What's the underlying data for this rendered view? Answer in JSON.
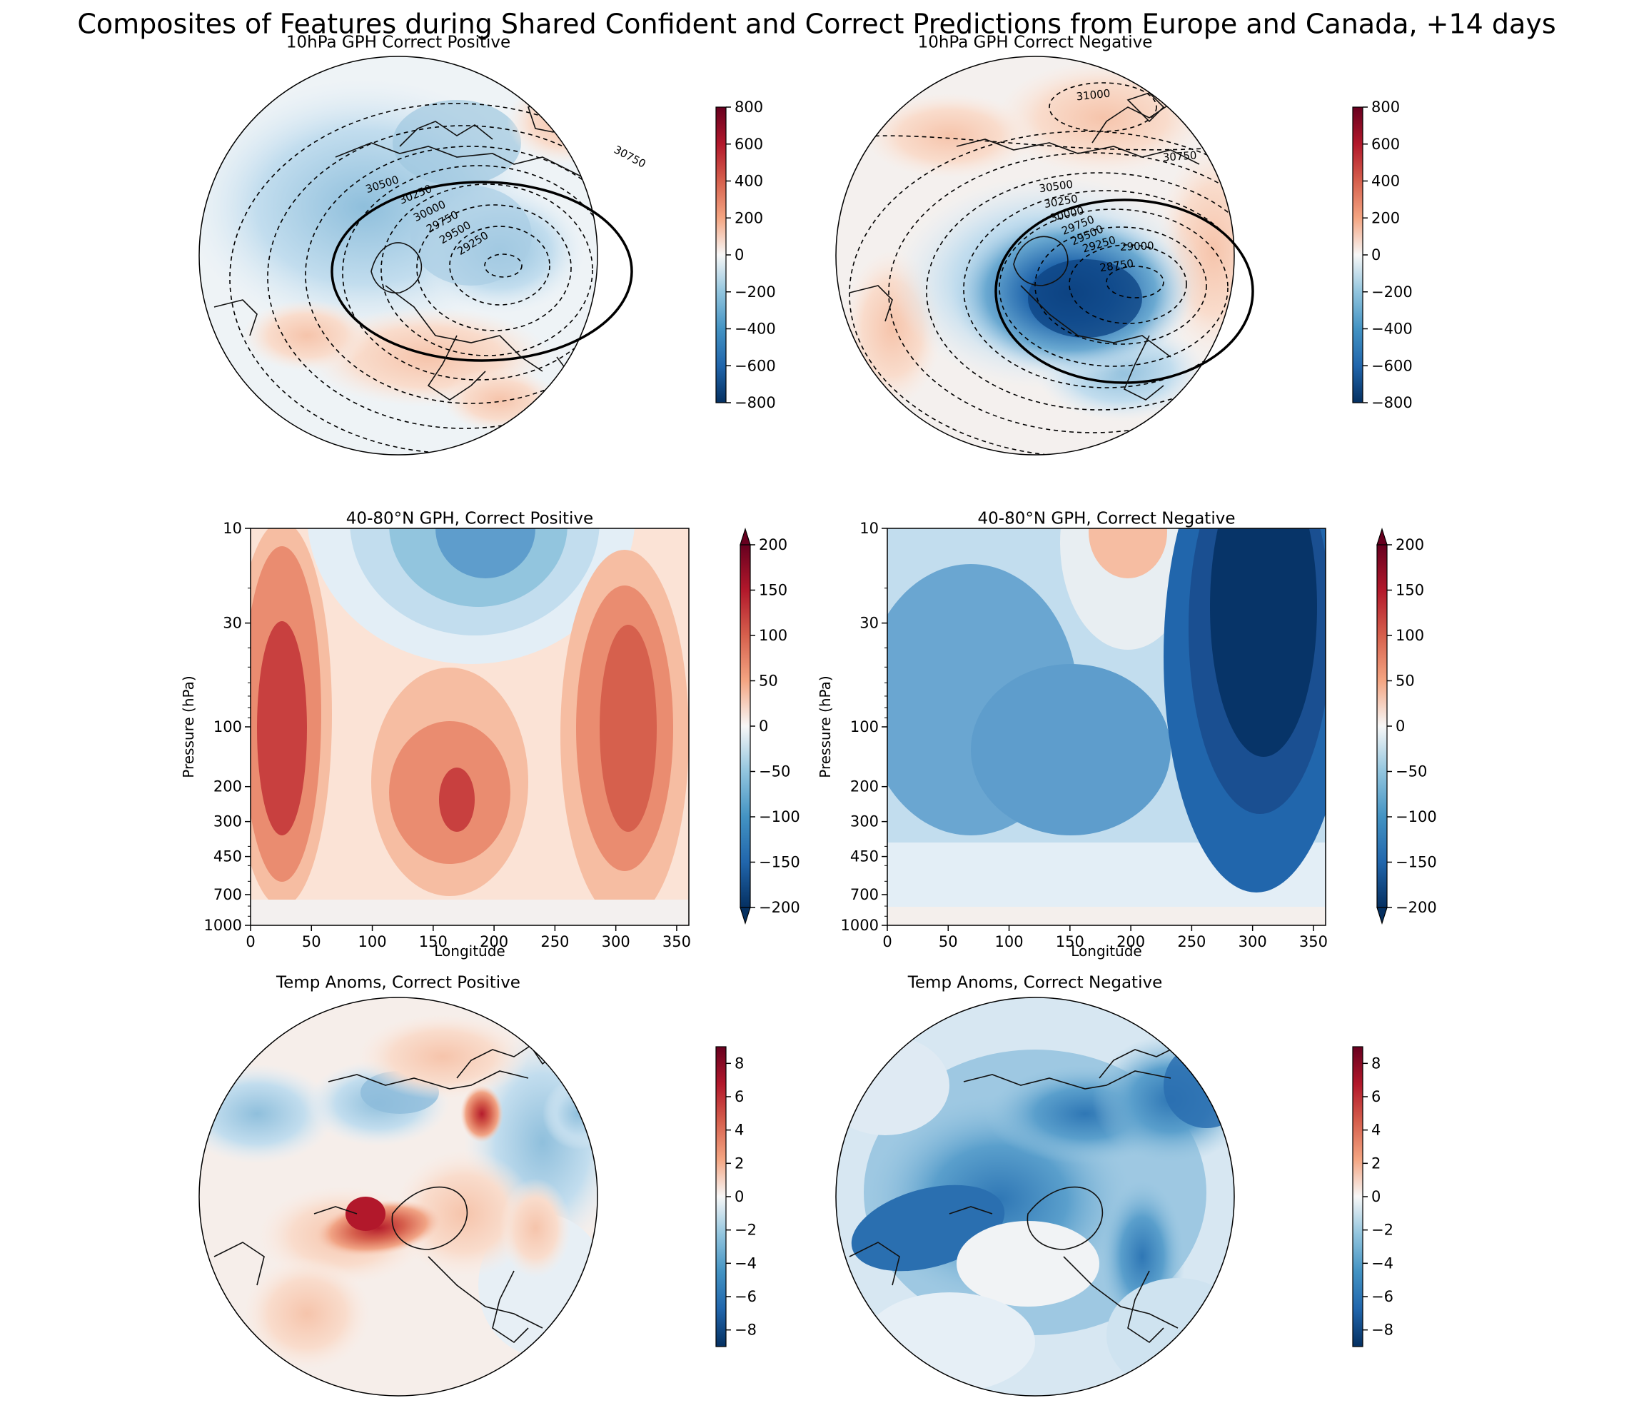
{
  "figure": {
    "suptitle": "Composites of Features during Shared Confident and Correct Predictions from Europe and Canada, +14 days"
  },
  "chart_data": [
    {
      "id": "gph10-pos",
      "type": "heatmap",
      "projection": "north-polar-stereographic",
      "title": "10hPa GPH Correct Positive",
      "colormap": "RdBu_r",
      "colorbar": {
        "ticks": [
          800,
          600,
          400,
          200,
          0,
          -200,
          -400,
          -600,
          -800
        ],
        "tick_labels": [
          "800",
          "600",
          "400",
          "200",
          "0",
          "−200",
          "−400",
          "−600",
          "−800"
        ],
        "range": [
          -800,
          800
        ]
      },
      "contour_labels": [
        "30750",
        "30500",
        "30250",
        "30000",
        "29750",
        "29500",
        "29250"
      ],
      "bold_contour": "polar vortex edge",
      "anomaly_range_estimate": [
        -300,
        200
      ]
    },
    {
      "id": "gph10-neg",
      "type": "heatmap",
      "projection": "north-polar-stereographic",
      "title": "10hPa GPH Correct Negative",
      "colormap": "RdBu_r",
      "colorbar": {
        "ticks": [
          800,
          600,
          400,
          200,
          0,
          -200,
          -400,
          -600,
          -800
        ],
        "tick_labels": [
          "800",
          "600",
          "400",
          "200",
          "0",
          "−200",
          "−400",
          "−600",
          "−800"
        ],
        "range": [
          -800,
          800
        ]
      },
      "contour_labels": [
        "31000",
        "30750",
        "30500",
        "30250",
        "30000",
        "29750",
        "29500",
        "29250",
        "29000",
        "28750"
      ],
      "bold_contour": "polar vortex edge",
      "anomaly_range_estimate": [
        -700,
        250
      ]
    },
    {
      "id": "zm-pos",
      "type": "heatmap",
      "title": "40-80°N GPH, Correct Positive",
      "xlabel": "Longitude",
      "ylabel": "Pressure (hPa)",
      "xlim": [
        0,
        360
      ],
      "xticks": [
        0,
        50,
        100,
        150,
        200,
        250,
        300,
        350
      ],
      "yscale": "log",
      "ylim": [
        1000,
        10
      ],
      "yticks": [
        10,
        30,
        100,
        200,
        300,
        450,
        700,
        1000
      ],
      "colorbar": {
        "ticks": [
          200,
          150,
          100,
          50,
          0,
          -50,
          -100,
          -150,
          -200
        ],
        "tick_labels": [
          "200",
          "150",
          "100",
          "50",
          "0",
          "−50",
          "−100",
          "−150",
          "−200"
        ],
        "levels_step": 25,
        "extend": "both"
      },
      "features": [
        {
          "lon": 25,
          "p": 100,
          "value": 140
        },
        {
          "lon": 165,
          "p": 230,
          "value": 120
        },
        {
          "lon": 310,
          "p": 100,
          "value": 110
        },
        {
          "lon": 170,
          "p": 10,
          "value": -90
        },
        {
          "lon": 90,
          "p": 10,
          "value": -60
        }
      ]
    },
    {
      "id": "zm-neg",
      "type": "heatmap",
      "title": "40-80°N GPH, Correct Negative",
      "xlabel": "Longitude",
      "ylabel": "Pressure (hPa)",
      "xlim": [
        0,
        360
      ],
      "xticks": [
        0,
        50,
        100,
        150,
        200,
        250,
        300,
        350
      ],
      "yscale": "log",
      "ylim": [
        1000,
        10
      ],
      "yticks": [
        10,
        30,
        100,
        200,
        300,
        450,
        700,
        1000
      ],
      "colorbar": {
        "ticks": [
          200,
          150,
          100,
          50,
          0,
          -50,
          -100,
          -150,
          -200
        ],
        "tick_labels": [
          "200",
          "150",
          "100",
          "50",
          "0",
          "−50",
          "−100",
          "−150",
          "−200"
        ],
        "levels_step": 25,
        "extend": "both"
      },
      "features": [
        {
          "lon": 305,
          "p": 40,
          "value": -210
        },
        {
          "lon": 185,
          "p": 10,
          "value": 70
        },
        {
          "lon": 30,
          "p": 60,
          "value": -110
        }
      ]
    },
    {
      "id": "t-pos",
      "type": "heatmap",
      "projection": "north-polar-stereographic",
      "title": "Temp Anoms, Correct Positive",
      "colormap": "RdBu_r",
      "colorbar": {
        "ticks": [
          8,
          6,
          4,
          2,
          0,
          -2,
          -4,
          -6,
          -8
        ],
        "tick_labels": [
          "8",
          "6",
          "4",
          "2",
          "0",
          "−2",
          "−4",
          "−6",
          "−8"
        ],
        "range": [
          -9,
          9
        ]
      },
      "anomaly_range_estimate": [
        -4,
        7
      ]
    },
    {
      "id": "t-neg",
      "type": "heatmap",
      "projection": "north-polar-stereographic",
      "title": "Temp Anoms, Correct Negative",
      "colormap": "RdBu_r",
      "colorbar": {
        "ticks": [
          8,
          6,
          4,
          2,
          0,
          -2,
          -4,
          -6,
          -8
        ],
        "tick_labels": [
          "8",
          "6",
          "4",
          "2",
          "0",
          "−2",
          "−4",
          "−6",
          "−8"
        ],
        "range": [
          -9,
          9
        ]
      },
      "anomaly_range_estimate": [
        -7,
        1
      ]
    }
  ]
}
